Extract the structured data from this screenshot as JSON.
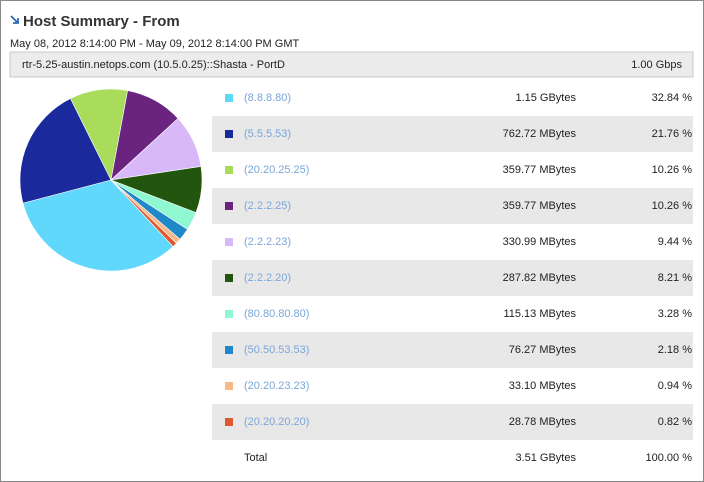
{
  "header": {
    "title": "Host Summary - From",
    "date_range": "May 08, 2012 8:14:00 PM - May 09, 2012 8:14:00 PM GMT",
    "interface": "rtr-5.25-austin.netops.com (10.5.0.25)::Shasta - PortD",
    "speed": "1.00 Gbps"
  },
  "chart_data": {
    "type": "pie",
    "categories": [
      "(8.8.8.80)",
      "(5.5.5.53)",
      "(20.20.25.25)",
      "(2.2.2.25)",
      "(2.2.2.23)",
      "(2.2.2.20)",
      "(80.80.80.80)",
      "(50.50.53.53)",
      "(20.20.23.23)",
      "(20.20.20.20)"
    ],
    "values": [
      32.84,
      21.76,
      10.26,
      10.26,
      9.44,
      8.21,
      3.28,
      2.18,
      0.94,
      0.82
    ],
    "value_labels": [
      "32.84 %",
      "21.76 %",
      "10.26 %",
      "10.26 %",
      "9.44 %",
      "8.21 %",
      "3.28 %",
      "2.18 %",
      "0.94 %",
      "0.82 %"
    ],
    "colors": [
      "#5fd8fb",
      "#1a2a9c",
      "#a8dc5a",
      "#6a2480",
      "#d8b8f8",
      "#22560e",
      "#90f8d0",
      "#1e88c8",
      "#f8b888",
      "#e05830"
    ]
  },
  "table": {
    "bytes": [
      "1.15 GBytes",
      "762.72 MBytes",
      "359.77 MBytes",
      "359.77 MBytes",
      "330.99 MBytes",
      "287.82 MBytes",
      "115.13 MBytes",
      "76.27 MBytes",
      "33.10 MBytes",
      "28.78 MBytes"
    ],
    "total": {
      "label": "Total",
      "bytes": "3.51 GBytes",
      "percent": "100.00 %"
    }
  }
}
